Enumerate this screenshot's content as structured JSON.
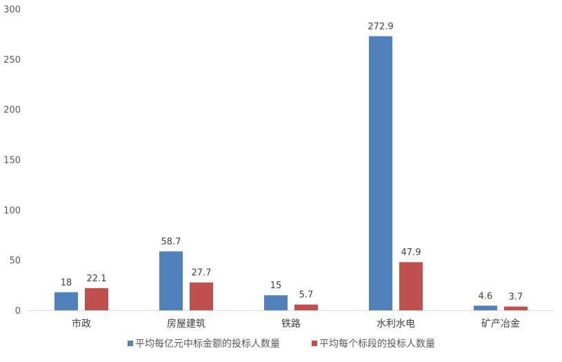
{
  "chart_data": {
    "type": "bar",
    "title": "",
    "xlabel": "",
    "ylabel": "",
    "ylim": [
      0,
      300
    ],
    "yticks": [
      "0",
      "50",
      "100",
      "150",
      "200",
      "250",
      "300"
    ],
    "grid": false,
    "legend_position": "bottom",
    "categories": [
      "市政",
      "房屋建筑",
      "铁路",
      "水利水电",
      "矿产冶金"
    ],
    "series": [
      {
        "name": "平均每亿元中标金额的投标人数量",
        "color": "#4f81bd",
        "values": [
          18,
          58.7,
          15,
          272.9,
          4.6
        ],
        "labels": [
          "18",
          "58.7",
          "15",
          "272.9",
          "4.6"
        ]
      },
      {
        "name": "平均每个标段的投标人数量",
        "color": "#c0504d",
        "values": [
          22.1,
          27.7,
          5.7,
          47.9,
          3.7
        ],
        "labels": [
          "22.1",
          "27.7",
          "5.7",
          "47.9",
          "3.7"
        ]
      }
    ]
  }
}
